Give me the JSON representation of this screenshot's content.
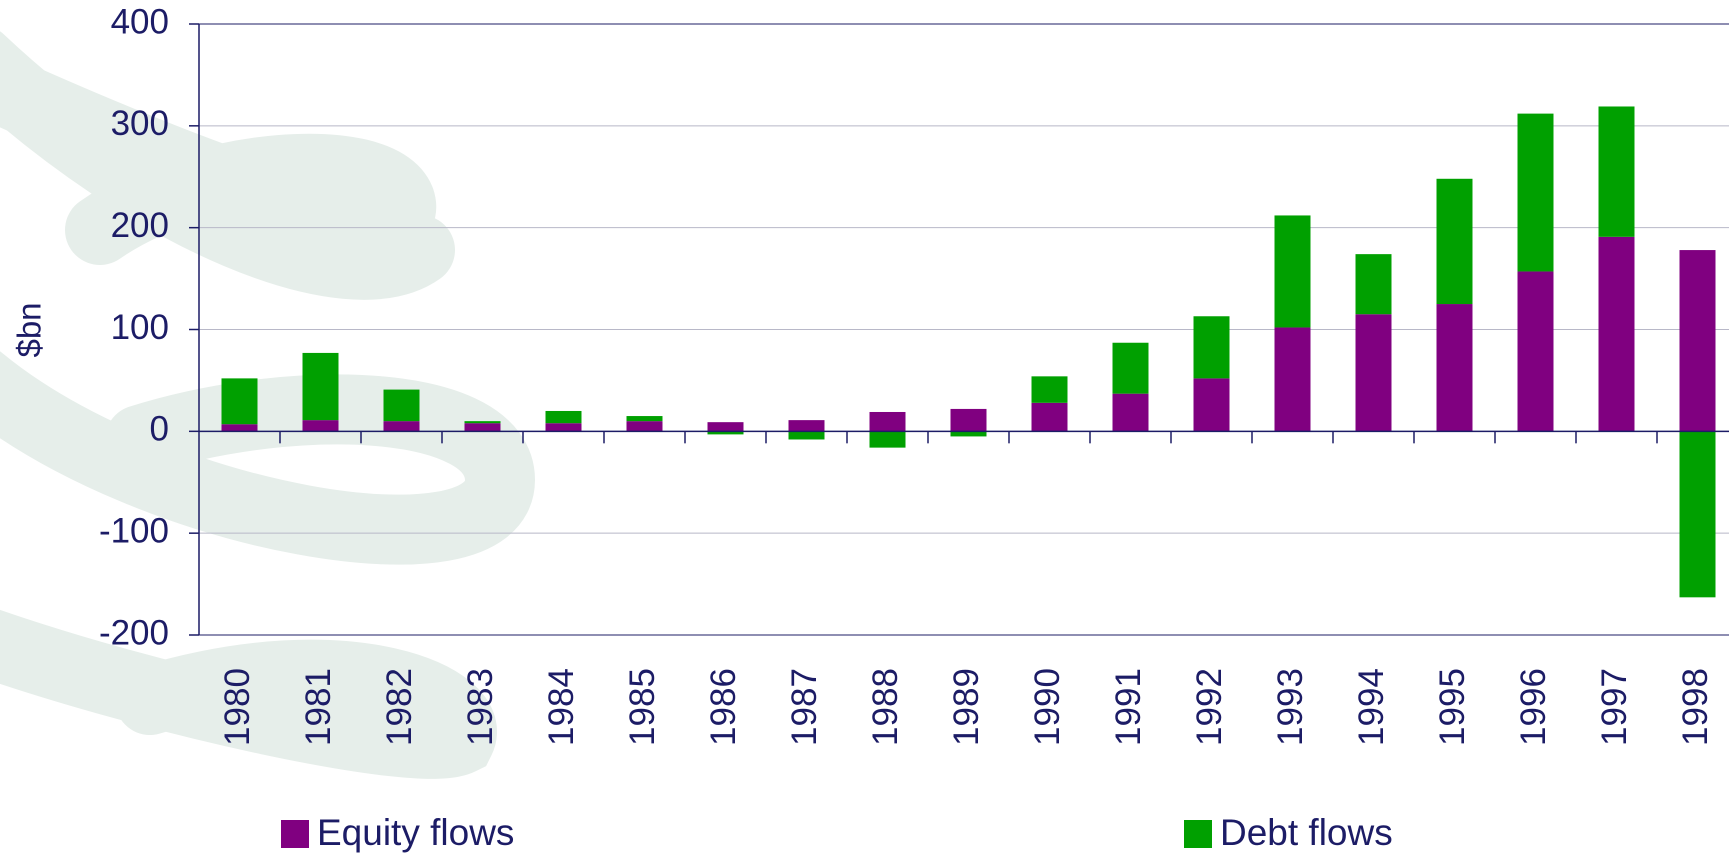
{
  "chart_data": {
    "type": "bar",
    "stacked": true,
    "ylabel": "$bn",
    "categories": [
      "1980",
      "1981",
      "1982",
      "1983",
      "1984",
      "1985",
      "1986",
      "1987",
      "1988",
      "1989",
      "1990",
      "1991",
      "1992",
      "1993",
      "1994",
      "1995",
      "1996",
      "1997",
      "1998"
    ],
    "series": [
      {
        "name": "Equity flows",
        "color": "#800080",
        "values": [
          7,
          11,
          10,
          8,
          8,
          10,
          9,
          11,
          19,
          22,
          28,
          37,
          52,
          102,
          115,
          125,
          157,
          191,
          178
        ]
      },
      {
        "name": "Debt flows",
        "color": "#00a000",
        "values": [
          45,
          66,
          31,
          2,
          12,
          5,
          -3,
          -8,
          -16,
          -5,
          26,
          50,
          61,
          110,
          59,
          123,
          155,
          128,
          -163
        ]
      }
    ],
    "ylim": [
      -200,
      400
    ],
    "yticks": [
      -200,
      -100,
      0,
      100,
      200,
      300,
      400
    ],
    "grid": true
  }
}
